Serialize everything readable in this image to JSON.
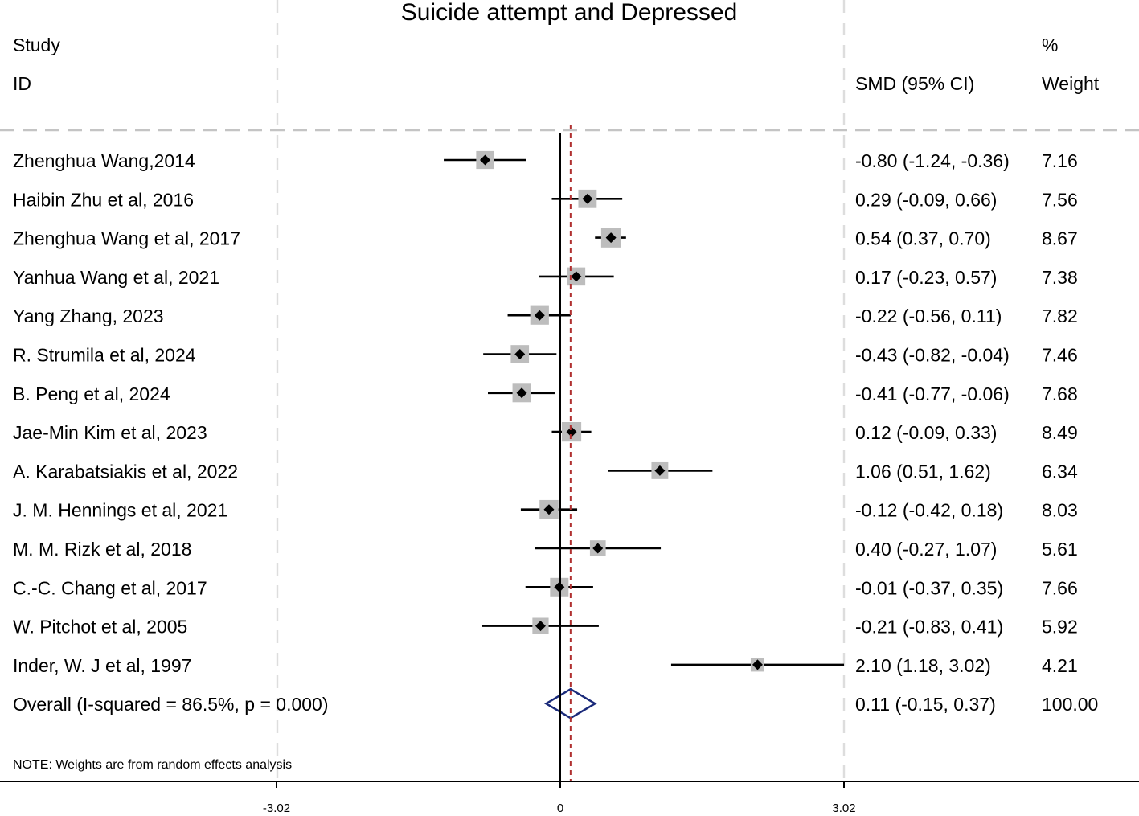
{
  "chart_data": {
    "type": "forest",
    "title": "Suicide attempt and Depressed",
    "headers": {
      "study_line1": "Study",
      "study_line2": "ID",
      "effect": "SMD (95% CI)",
      "weight_line1": "%",
      "weight_line2": "Weight"
    },
    "xlim": [
      -3.02,
      3.02
    ],
    "ticks": [
      {
        "value": -3.02,
        "label": "-3.02"
      },
      {
        "value": 0,
        "label": "0"
      },
      {
        "value": 3.02,
        "label": "3.02"
      }
    ],
    "studies": [
      {
        "label": "Zhenghua Wang,2014",
        "smd": -0.8,
        "lower": -1.24,
        "upper": -0.36,
        "ci_text": "-0.80 (-1.24, -0.36)",
        "weight": 7.16,
        "weight_text": "7.16"
      },
      {
        "label": "Haibin Zhu et al,  2016",
        "smd": 0.29,
        "lower": -0.09,
        "upper": 0.66,
        "ci_text": "0.29 (-0.09, 0.66)",
        "weight": 7.56,
        "weight_text": "7.56"
      },
      {
        "label": "Zhenghua Wang et al,  2017",
        "smd": 0.54,
        "lower": 0.37,
        "upper": 0.7,
        "ci_text": "0.54 (0.37, 0.70)",
        "weight": 8.67,
        "weight_text": "8.67"
      },
      {
        "label": "Yanhua Wang et al,  2021",
        "smd": 0.17,
        "lower": -0.23,
        "upper": 0.57,
        "ci_text": "0.17 (-0.23, 0.57)",
        "weight": 7.38,
        "weight_text": "7.38"
      },
      {
        "label": "Yang Zhang,  2023",
        "smd": -0.22,
        "lower": -0.56,
        "upper": 0.11,
        "ci_text": "-0.22 (-0.56, 0.11)",
        "weight": 7.82,
        "weight_text": "7.82"
      },
      {
        "label": "R. Strumila et al,  2024",
        "smd": -0.43,
        "lower": -0.82,
        "upper": -0.04,
        "ci_text": "-0.43 (-0.82, -0.04)",
        "weight": 7.46,
        "weight_text": "7.46"
      },
      {
        "label": "B. Peng et al,  2024",
        "smd": -0.41,
        "lower": -0.77,
        "upper": -0.06,
        "ci_text": "-0.41 (-0.77, -0.06)",
        "weight": 7.68,
        "weight_text": "7.68"
      },
      {
        "label": "Jae-Min Kim et al,  2023",
        "smd": 0.12,
        "lower": -0.09,
        "upper": 0.33,
        "ci_text": "0.12 (-0.09, 0.33)",
        "weight": 8.49,
        "weight_text": "8.49"
      },
      {
        "label": "A. Karabatsiakis et al,  2022",
        "smd": 1.06,
        "lower": 0.51,
        "upper": 1.62,
        "ci_text": "1.06 (0.51, 1.62)",
        "weight": 6.34,
        "weight_text": "6.34"
      },
      {
        "label": "J. M. Hennings et al,  2021",
        "smd": -0.12,
        "lower": -0.42,
        "upper": 0.18,
        "ci_text": "-0.12 (-0.42, 0.18)",
        "weight": 8.03,
        "weight_text": "8.03"
      },
      {
        "label": "M. M. Rizk et al,  2018",
        "smd": 0.4,
        "lower": -0.27,
        "upper": 1.07,
        "ci_text": "0.40 (-0.27, 1.07)",
        "weight": 5.61,
        "weight_text": "5.61"
      },
      {
        "label": "C.-C. Chang et al,  2017",
        "smd": -0.01,
        "lower": -0.37,
        "upper": 0.35,
        "ci_text": "-0.01 (-0.37, 0.35)",
        "weight": 7.66,
        "weight_text": "7.66"
      },
      {
        "label": "W. Pitchot  et al,  2005",
        "smd": -0.21,
        "lower": -0.83,
        "upper": 0.41,
        "ci_text": "-0.21 (-0.83, 0.41)",
        "weight": 5.92,
        "weight_text": "5.92"
      },
      {
        "label": "Inder, W. J et al,  1997",
        "smd": 2.1,
        "lower": 1.18,
        "upper": 3.02,
        "ci_text": "2.10 (1.18, 3.02)",
        "weight": 4.21,
        "weight_text": "4.21"
      }
    ],
    "overall": {
      "label": "Overall  (I-squared = 86.5%, p = 0.000)",
      "smd": 0.11,
      "lower": -0.15,
      "upper": 0.37,
      "ci_text": "0.11 (-0.15, 0.37)",
      "weight_text": "100.00"
    },
    "note": "NOTE: Weights are from random effects analysis"
  }
}
